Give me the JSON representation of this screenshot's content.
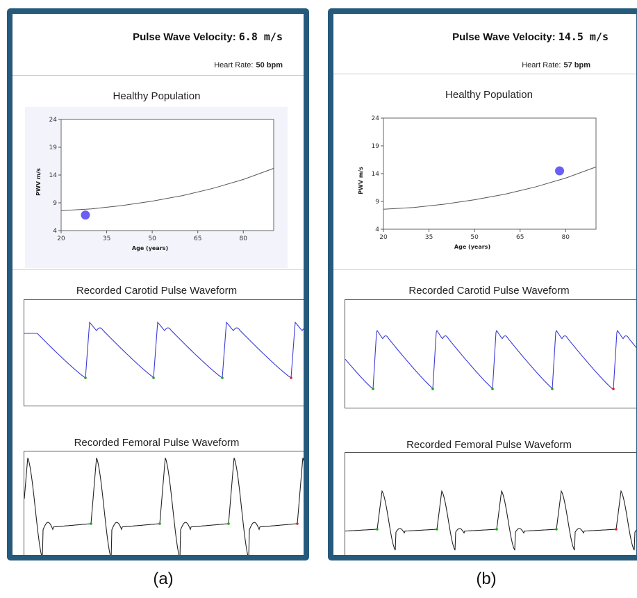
{
  "panels": [
    {
      "pwv_label": "Pulse Wave Velocity:",
      "pwv_value": "6.8 m/s",
      "hr_label": "Heart Rate:",
      "hr_value": "50 bpm",
      "chart_title": "Healthy Population",
      "carotid_title": "Recorded Carotid Pulse Waveform",
      "femoral_title": "Recorded Femoral Pulse Waveform",
      "caption": "(a)"
    },
    {
      "pwv_label": "Pulse Wave Velocity:",
      "pwv_value": "14.5 m/s",
      "hr_label": "Heart Rate:",
      "hr_value": "57 bpm",
      "chart_title": "Healthy Population",
      "carotid_title": "Recorded Carotid Pulse Waveform",
      "femoral_title": "Recorded Femoral Pulse Waveform",
      "caption": "(b)"
    }
  ],
  "chart_data": [
    {
      "type": "scatter",
      "title": "Healthy Population",
      "xlabel": "Age (years)",
      "ylabel": "PWV m/s",
      "xlim": [
        20,
        90
      ],
      "ylim": [
        4,
        24
      ],
      "xticks": [
        20,
        35,
        50,
        65,
        80
      ],
      "yticks": [
        4,
        9,
        14,
        19,
        24
      ],
      "reference_curve": {
        "x": [
          20,
          30,
          40,
          50,
          60,
          70,
          80,
          90
        ],
        "y": [
          7.6,
          7.9,
          8.5,
          9.3,
          10.3,
          11.6,
          13.2,
          15.2
        ]
      },
      "points": [
        {
          "x": 28,
          "y": 6.8
        }
      ],
      "point_color": "#6a5ff0",
      "curve_color": "#555555",
      "background": "#f3f3fb"
    },
    {
      "type": "scatter",
      "title": "Healthy Population",
      "xlabel": "Age (years)",
      "ylabel": "PWV m/s",
      "xlim": [
        20,
        90
      ],
      "ylim": [
        4,
        24
      ],
      "xticks": [
        20,
        35,
        50,
        65,
        80
      ],
      "yticks": [
        4,
        9,
        14,
        19,
        24
      ],
      "reference_curve": {
        "x": [
          20,
          30,
          40,
          50,
          60,
          70,
          80,
          90
        ],
        "y": [
          7.6,
          7.9,
          8.5,
          9.3,
          10.3,
          11.6,
          13.2,
          15.2
        ]
      },
      "points": [
        {
          "x": 78,
          "y": 14.5
        }
      ],
      "point_color": "#6a5ff0",
      "curve_color": "#555555",
      "background": "#ffffff"
    }
  ],
  "colors": {
    "panel_border": "#265a7c",
    "carotid_line": "#3a3ad6",
    "femoral_line": "#222222",
    "foot_marker": "#22a022",
    "last_marker": "#e02020"
  }
}
